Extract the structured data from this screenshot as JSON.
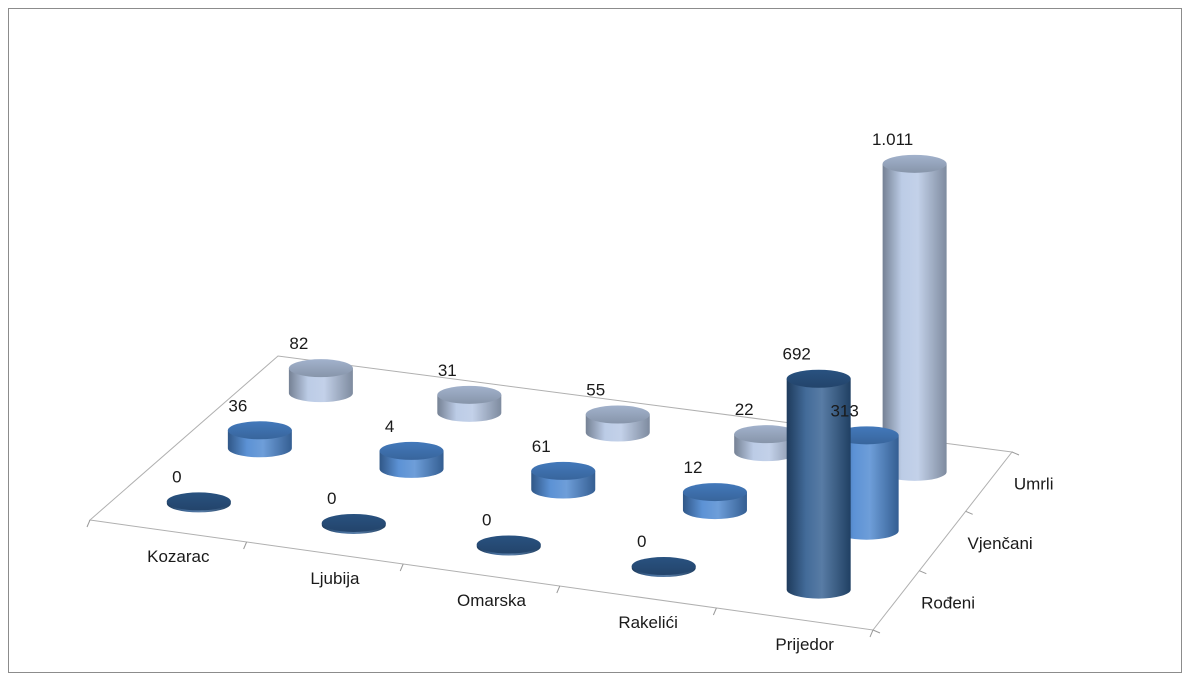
{
  "chart_data": {
    "type": "bar",
    "variant": "3d-cylinder",
    "categories": [
      "Kozarac",
      "Ljubija",
      "Omarska",
      "Rakelići",
      "Prijedor"
    ],
    "series": [
      {
        "name": "Rođeni",
        "values": [
          0,
          0,
          0,
          0,
          692
        ],
        "labels": [
          "0",
          "0",
          "0",
          "0",
          "692"
        ],
        "color": "#2e5b8e"
      },
      {
        "name": "Vjenčani",
        "values": [
          36,
          4,
          61,
          12,
          313
        ],
        "labels": [
          "36",
          "4",
          "61",
          "12",
          "313"
        ],
        "color": "#4a86d0"
      },
      {
        "name": "Umrli",
        "values": [
          82,
          31,
          55,
          22,
          1011
        ],
        "labels": [
          "82",
          "31",
          "55",
          "22",
          "1.011"
        ],
        "color": "#b4c6e3"
      }
    ],
    "ylim": [
      0,
      1011
    ],
    "grid": false,
    "legend": "none"
  }
}
